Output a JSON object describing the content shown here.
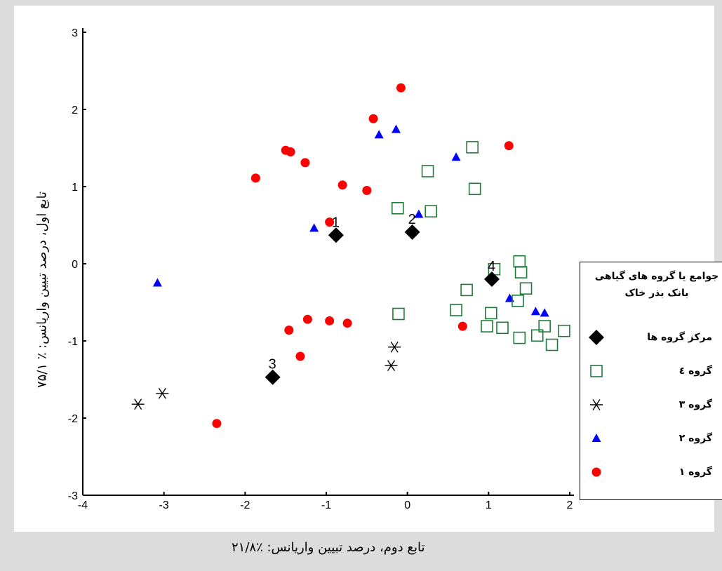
{
  "chart_data": {
    "type": "scatter",
    "title": "",
    "xlabel": "تابع دوم، درصد تبیین واریانس:   ٪۲۱/۸",
    "ylabel": "تابع اول، درصد تبیین واریانس: ٪ ۷۵/۱",
    "xlim": [
      -4,
      2
    ],
    "ylim": [
      -3,
      3
    ],
    "xticks": [
      "-4",
      "-3",
      "-2",
      "-1",
      "0",
      "1",
      "2"
    ],
    "yticks": [
      "-3",
      "-2",
      "-1",
      "0",
      "1",
      "2",
      "3"
    ],
    "grid": false,
    "legend_position": "right",
    "legend_title_line1": "جوامع یا گروه های گیاهی",
    "legend_title_line2": "بانک بذر خاک",
    "series": [
      {
        "name": "گروه ۱",
        "marker": "circle",
        "color": "#ff0000",
        "points": [
          [
            -0.08,
            2.28
          ],
          [
            -0.42,
            1.88
          ],
          [
            1.25,
            1.53
          ],
          [
            -1.5,
            1.47
          ],
          [
            -1.44,
            1.45
          ],
          [
            -1.26,
            1.31
          ],
          [
            -1.87,
            1.11
          ],
          [
            -0.8,
            1.02
          ],
          [
            -0.5,
            0.95
          ],
          [
            -0.96,
            0.54
          ],
          [
            -1.46,
            -0.86
          ],
          [
            -1.23,
            -0.72
          ],
          [
            -0.96,
            -0.74
          ],
          [
            -0.74,
            -0.77
          ],
          [
            -1.32,
            -1.2
          ],
          [
            -2.35,
            -2.07
          ],
          [
            0.68,
            -0.81
          ]
        ]
      },
      {
        "name": "گروه ۲",
        "marker": "triangle",
        "color": "#0000ff",
        "points": [
          [
            -0.14,
            1.74
          ],
          [
            -0.35,
            1.67
          ],
          [
            0.6,
            1.38
          ],
          [
            0.14,
            0.64
          ],
          [
            -1.15,
            0.46
          ],
          [
            -3.08,
            -0.25
          ],
          [
            1.58,
            -0.62
          ],
          [
            1.69,
            -0.64
          ],
          [
            1.26,
            -0.45
          ]
        ]
      },
      {
        "name": "گروه ۳",
        "marker": "asterisk",
        "color": "#000000",
        "points": [
          [
            -3.32,
            -1.82
          ],
          [
            -3.02,
            -1.68
          ],
          [
            -0.16,
            -1.08
          ],
          [
            -0.2,
            -1.32
          ]
        ]
      },
      {
        "name": "گروه ٤",
        "marker": "square",
        "color": "#1f7a3a",
        "points": [
          [
            0.8,
            1.51
          ],
          [
            0.83,
            0.97
          ],
          [
            0.25,
            1.2
          ],
          [
            -0.12,
            0.72
          ],
          [
            0.29,
            0.68
          ],
          [
            1.38,
            0.03
          ],
          [
            1.4,
            -0.11
          ],
          [
            1.07,
            -0.07
          ],
          [
            0.73,
            -0.34
          ],
          [
            1.46,
            -0.32
          ],
          [
            1.36,
            -0.48
          ],
          [
            0.6,
            -0.6
          ],
          [
            1.03,
            -0.64
          ],
          [
            -0.11,
            -0.65
          ],
          [
            0.98,
            -0.81
          ],
          [
            1.17,
            -0.83
          ],
          [
            1.69,
            -0.81
          ],
          [
            1.93,
            -0.87
          ],
          [
            1.6,
            -0.93
          ],
          [
            1.38,
            -0.96
          ],
          [
            1.78,
            -1.05
          ]
        ]
      },
      {
        "name": "مرکز گروه ها",
        "marker": "diamond",
        "color": "#000000",
        "points": [
          [
            -0.88,
            0.37
          ],
          [
            0.06,
            0.41
          ],
          [
            -1.66,
            -1.47
          ],
          [
            1.04,
            -0.2
          ]
        ],
        "labels": [
          "1",
          "2",
          "3",
          "4"
        ]
      }
    ],
    "legend_order": [
      "مرکز گروه ها",
      "گروه ٤",
      "گروه ۳",
      "گروه ۲",
      "گروه ۱"
    ]
  }
}
